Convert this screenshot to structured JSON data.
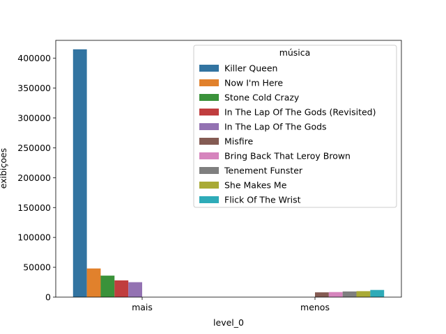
{
  "chart_data": {
    "type": "bar",
    "xlabel": "level_0",
    "ylabel": "exibiçoes",
    "categories": [
      "mais",
      "menos"
    ],
    "ylim": [
      0,
      430000
    ],
    "yticks": [
      0,
      50000,
      100000,
      150000,
      200000,
      250000,
      300000,
      350000,
      400000
    ],
    "ytick_labels": [
      "0",
      "50000",
      "100000",
      "150000",
      "200000",
      "250000",
      "300000",
      "350000",
      "400000"
    ],
    "grid": false,
    "legend": {
      "title": "música",
      "placement": "upper-center"
    },
    "series": [
      {
        "name": "Killer Queen",
        "color": "#3274a1",
        "values": [
          415000,
          null
        ]
      },
      {
        "name": "Now I'm Here",
        "color": "#e1812c",
        "values": [
          48000,
          null
        ]
      },
      {
        "name": "Stone Cold Crazy",
        "color": "#3a923a",
        "values": [
          36000,
          null
        ]
      },
      {
        "name": "In The Lap Of The Gods (Revisited)",
        "color": "#c03d3e",
        "values": [
          28000,
          null
        ]
      },
      {
        "name": "In The Lap Of The Gods",
        "color": "#9372b2",
        "values": [
          25000,
          null
        ]
      },
      {
        "name": "Misfire",
        "color": "#845b53",
        "values": [
          null,
          8000
        ]
      },
      {
        "name": "Bring Back That Leroy Brown",
        "color": "#d684bd",
        "values": [
          null,
          8500
        ]
      },
      {
        "name": "Tenement Funster",
        "color": "#7f7f7f",
        "values": [
          null,
          9500
        ]
      },
      {
        "name": "She Makes Me",
        "color": "#a9aa35",
        "values": [
          null,
          10000
        ]
      },
      {
        "name": "Flick Of The Wrist",
        "color": "#2eabb8",
        "values": [
          null,
          12000
        ]
      }
    ]
  }
}
